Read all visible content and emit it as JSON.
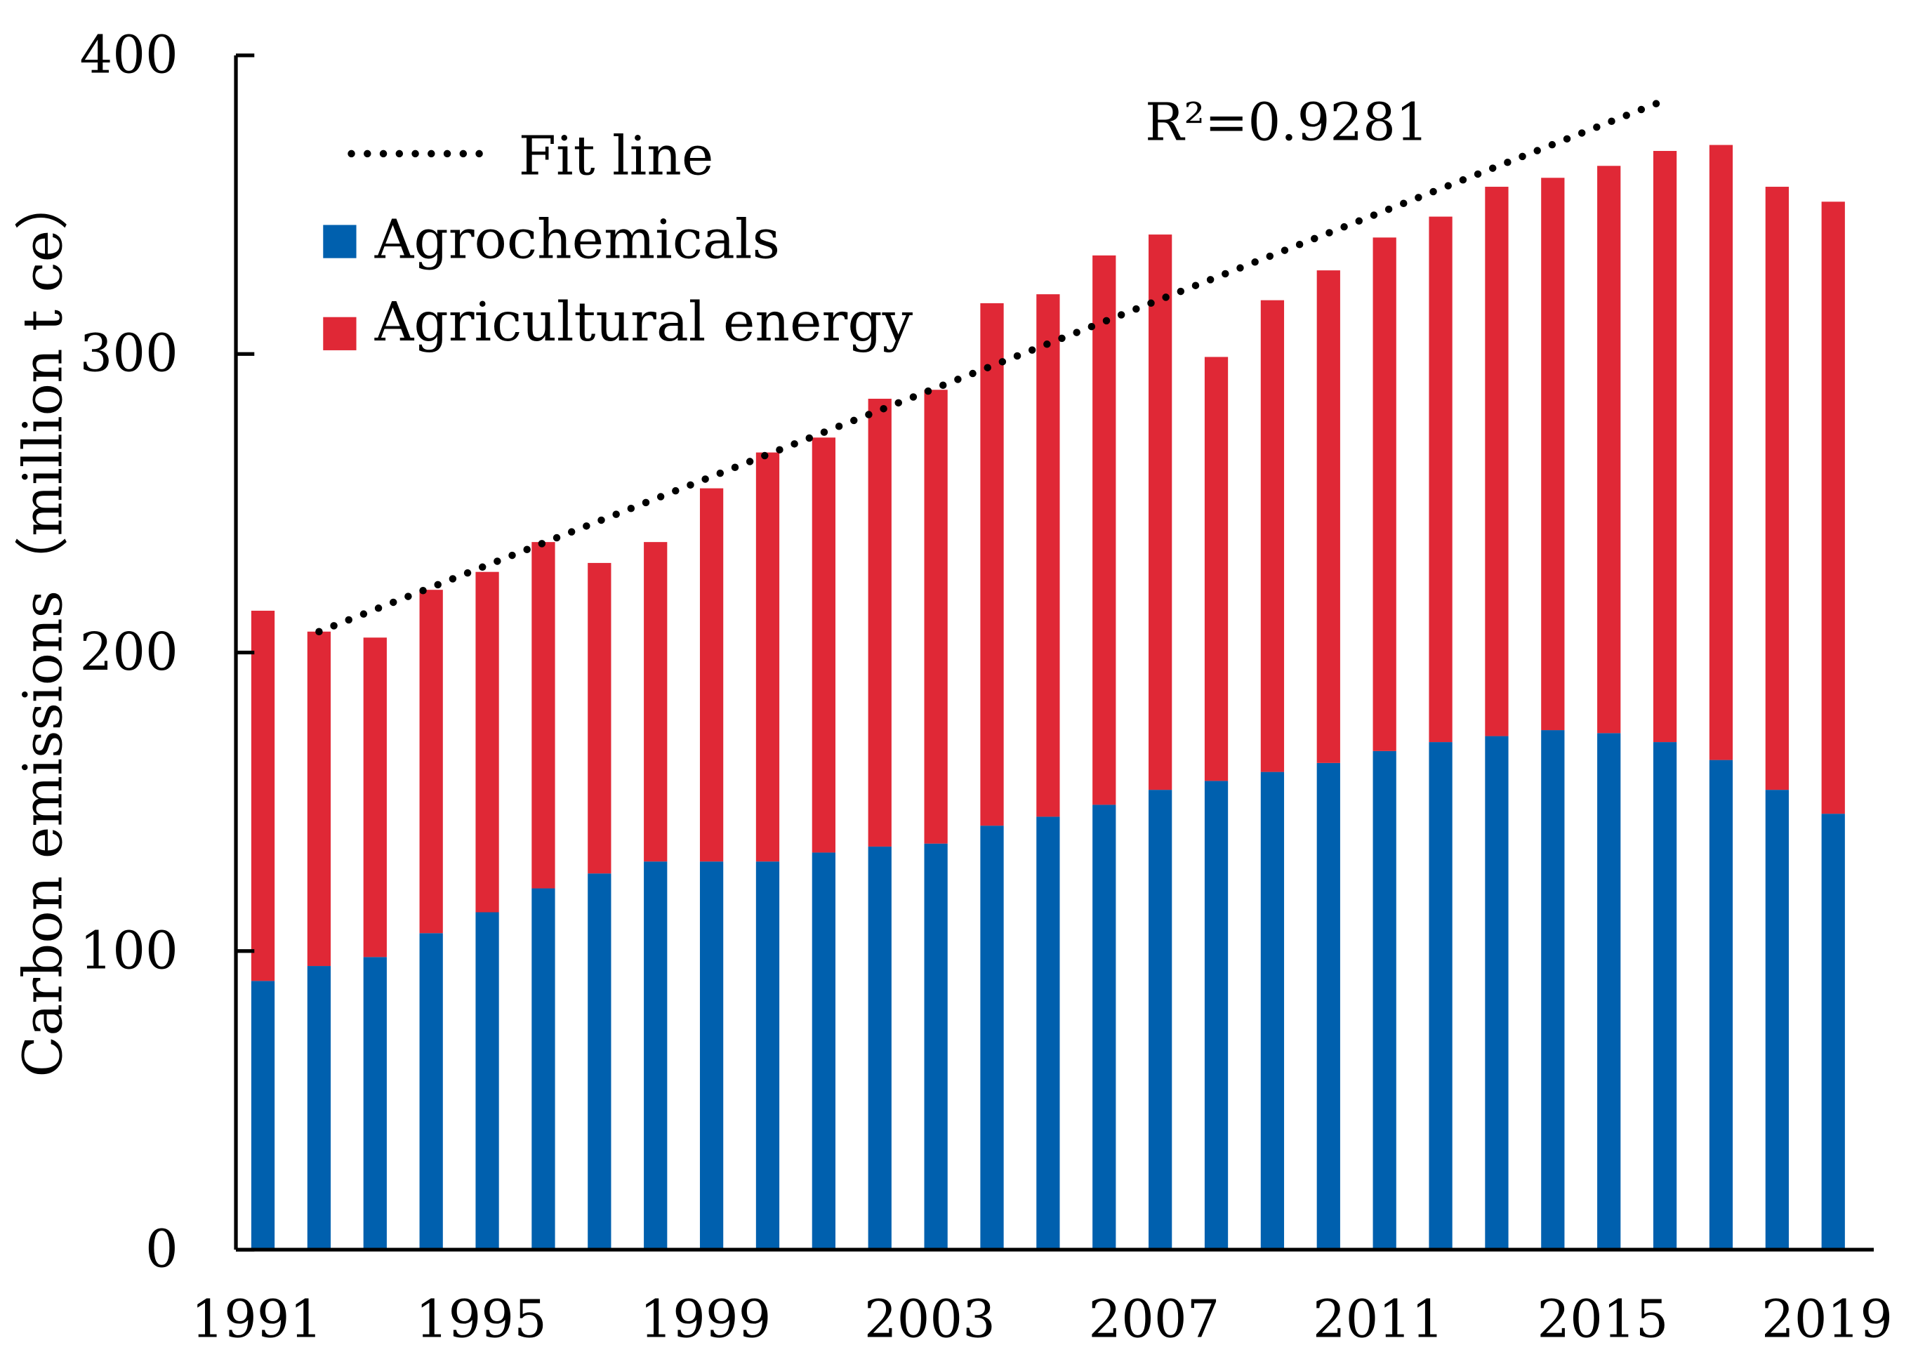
{
  "chart_data": {
    "type": "bar",
    "stacked": true,
    "title": "",
    "xlabel": "",
    "ylabel": "Carbon emissions（million t ce）",
    "ylim": [
      0,
      400
    ],
    "yticks": [
      "0",
      "100",
      "200",
      "300",
      "400"
    ],
    "xtick_labels": [
      "1991",
      "1995",
      "1999",
      "2003",
      "2007",
      "2011",
      "2015",
      "2019"
    ],
    "categories": [
      1991,
      1992,
      1993,
      1994,
      1995,
      1996,
      1997,
      1998,
      1999,
      2000,
      2001,
      2002,
      2003,
      2004,
      2005,
      2006,
      2007,
      2008,
      2009,
      2010,
      2011,
      2012,
      2013,
      2014,
      2015,
      2016,
      2017,
      2018,
      2019
    ],
    "series": [
      {
        "name": "Agrochemicals",
        "color": "#0060AE",
        "values": [
          90,
          95,
          98,
          106,
          113,
          121,
          126,
          130,
          130,
          130,
          133,
          135,
          136,
          142,
          145,
          149,
          154,
          157,
          160,
          163,
          167,
          170,
          172,
          174,
          173,
          170,
          164,
          154,
          146
        ]
      },
      {
        "name": "Agricultural energy",
        "color": "#E02836",
        "values": [
          124,
          112,
          107,
          115,
          114,
          116,
          104,
          107,
          125,
          137,
          139,
          150,
          152,
          175,
          175,
          184,
          186,
          142,
          158,
          165,
          172,
          176,
          184,
          185,
          190,
          198,
          206,
          202,
          205
        ]
      }
    ],
    "fit_line": {
      "name": "Fit line",
      "x": [
        1992,
        2016
      ],
      "y": [
        207,
        385
      ],
      "r2_label": "R²=0.9281"
    },
    "legend": {
      "placement": "top-left",
      "entries": [
        "Fit line",
        "Agrochemicals",
        "Agricultural energy"
      ]
    },
    "grid": false
  }
}
